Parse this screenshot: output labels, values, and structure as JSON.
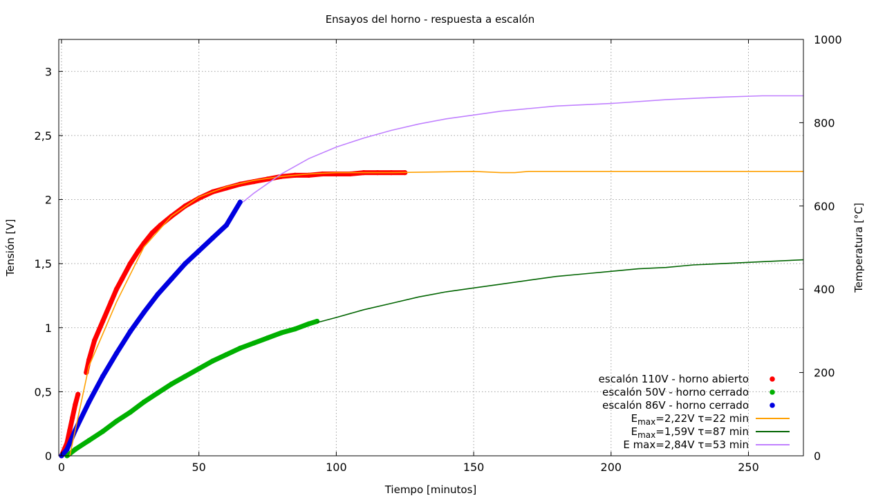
{
  "chart_data": {
    "type": "scatter",
    "title": "Ensayos del horno - respuesta a escalón",
    "xlabel": "Tiempo [minutos]",
    "ylabel": "Tensión [V]",
    "y2label": "Temperatura [°C]",
    "xlim": [
      -1,
      270
    ],
    "ylim": [
      0,
      3.25
    ],
    "y2lim": [
      0,
      1000
    ],
    "xticks": [
      0,
      50,
      100,
      150,
      200,
      250
    ],
    "xtick_labels": [
      "0",
      "50",
      "100",
      "150",
      "200",
      "250"
    ],
    "yticks": [
      0,
      0.5,
      1,
      1.5,
      2,
      2.5,
      3
    ],
    "ytick_labels": [
      "0",
      "0,5",
      "1",
      "1,5",
      "2",
      "2,5",
      "3"
    ],
    "y2ticks": [
      0,
      200,
      400,
      600,
      800,
      1000
    ],
    "y2tick_labels": [
      "0",
      "200",
      "400",
      "600",
      "800",
      "1000"
    ],
    "grid": true,
    "legend_position": "bottom-right",
    "series": [
      {
        "name": "escalón 110V - horno abierto",
        "kind": "points",
        "color": "#ff0000",
        "points": [
          [
            0,
            0.0
          ],
          [
            2,
            0.1
          ],
          [
            3,
            0.2
          ],
          [
            4,
            0.3
          ],
          [
            5,
            0.4
          ],
          [
            6,
            0.48
          ],
          [
            9,
            0.65
          ],
          [
            10,
            0.75
          ],
          [
            12,
            0.9
          ],
          [
            15,
            1.05
          ],
          [
            18,
            1.2
          ],
          [
            20,
            1.3
          ],
          [
            22,
            1.38
          ],
          [
            25,
            1.5
          ],
          [
            28,
            1.6
          ],
          [
            30,
            1.66
          ],
          [
            33,
            1.74
          ],
          [
            36,
            1.8
          ],
          [
            40,
            1.87
          ],
          [
            45,
            1.95
          ],
          [
            50,
            2.01
          ],
          [
            55,
            2.06
          ],
          [
            60,
            2.09
          ],
          [
            65,
            2.12
          ],
          [
            70,
            2.14
          ],
          [
            75,
            2.16
          ],
          [
            80,
            2.18
          ],
          [
            85,
            2.19
          ],
          [
            90,
            2.19
          ],
          [
            95,
            2.2
          ],
          [
            100,
            2.2
          ],
          [
            105,
            2.2
          ],
          [
            110,
            2.21
          ],
          [
            115,
            2.21
          ],
          [
            120,
            2.21
          ],
          [
            125,
            2.21
          ]
        ]
      },
      {
        "name": "escalón 50V - horno cerrado",
        "kind": "points",
        "color": "#00b000",
        "points": [
          [
            2,
            0.0
          ],
          [
            5,
            0.05
          ],
          [
            10,
            0.12
          ],
          [
            15,
            0.19
          ],
          [
            20,
            0.27
          ],
          [
            25,
            0.34
          ],
          [
            30,
            0.42
          ],
          [
            35,
            0.49
          ],
          [
            40,
            0.56
          ],
          [
            45,
            0.62
          ],
          [
            50,
            0.68
          ],
          [
            55,
            0.74
          ],
          [
            60,
            0.79
          ],
          [
            65,
            0.84
          ],
          [
            70,
            0.88
          ],
          [
            75,
            0.92
          ],
          [
            80,
            0.96
          ],
          [
            85,
            0.99
          ],
          [
            90,
            1.03
          ],
          [
            93,
            1.05
          ]
        ]
      },
      {
        "name": "escalón 86V - horno cerrado",
        "kind": "points",
        "color": "#0000e0",
        "points": [
          [
            0,
            0.0
          ],
          [
            2,
            0.05
          ],
          [
            5,
            0.2
          ],
          [
            10,
            0.42
          ],
          [
            15,
            0.62
          ],
          [
            20,
            0.8
          ],
          [
            25,
            0.97
          ],
          [
            30,
            1.12
          ],
          [
            35,
            1.26
          ],
          [
            40,
            1.38
          ],
          [
            45,
            1.5
          ],
          [
            50,
            1.6
          ],
          [
            55,
            1.7
          ],
          [
            60,
            1.8
          ],
          [
            65,
            1.98
          ]
        ]
      },
      {
        "name": "E",
        "name_sub": "max",
        "name_rest": "=2,22V τ=22 min",
        "kind": "line",
        "color": "#ffa000",
        "points": [
          [
            3,
            0.0
          ],
          [
            10,
            0.7
          ],
          [
            15,
            0.95
          ],
          [
            20,
            1.2
          ],
          [
            30,
            1.63
          ],
          [
            40,
            1.87
          ],
          [
            50,
            2.02
          ],
          [
            60,
            2.1
          ],
          [
            70,
            2.15
          ],
          [
            80,
            2.18
          ],
          [
            90,
            2.2
          ],
          [
            100,
            2.21
          ],
          [
            120,
            2.21
          ],
          [
            150,
            2.22
          ],
          [
            160,
            2.21
          ],
          [
            165,
            2.21
          ],
          [
            170,
            2.22
          ],
          [
            270,
            2.22
          ]
        ]
      },
      {
        "name": "E",
        "name_sub": "max",
        "name_rest": "=1,59V τ=87 min",
        "kind": "line",
        "color": "#006400",
        "points": [
          [
            93,
            1.04
          ],
          [
            100,
            1.08
          ],
          [
            110,
            1.14
          ],
          [
            120,
            1.19
          ],
          [
            130,
            1.24
          ],
          [
            140,
            1.28
          ],
          [
            150,
            1.31
          ],
          [
            160,
            1.34
          ],
          [
            170,
            1.37
          ],
          [
            180,
            1.4
          ],
          [
            190,
            1.42
          ],
          [
            200,
            1.44
          ],
          [
            210,
            1.46
          ],
          [
            220,
            1.47
          ],
          [
            230,
            1.49
          ],
          [
            240,
            1.5
          ],
          [
            250,
            1.51
          ],
          [
            260,
            1.52
          ],
          [
            270,
            1.53
          ]
        ]
      },
      {
        "name": "E max=2,84V τ=53 min",
        "kind": "line",
        "color": "#c080ff",
        "points": [
          [
            66,
            1.98
          ],
          [
            70,
            2.05
          ],
          [
            80,
            2.2
          ],
          [
            90,
            2.32
          ],
          [
            100,
            2.41
          ],
          [
            110,
            2.48
          ],
          [
            120,
            2.54
          ],
          [
            130,
            2.59
          ],
          [
            140,
            2.63
          ],
          [
            150,
            2.66
          ],
          [
            160,
            2.69
          ],
          [
            170,
            2.71
          ],
          [
            180,
            2.73
          ],
          [
            200,
            2.75
          ],
          [
            220,
            2.78
          ],
          [
            240,
            2.8
          ],
          [
            255,
            2.81
          ],
          [
            270,
            2.81
          ]
        ]
      }
    ]
  }
}
